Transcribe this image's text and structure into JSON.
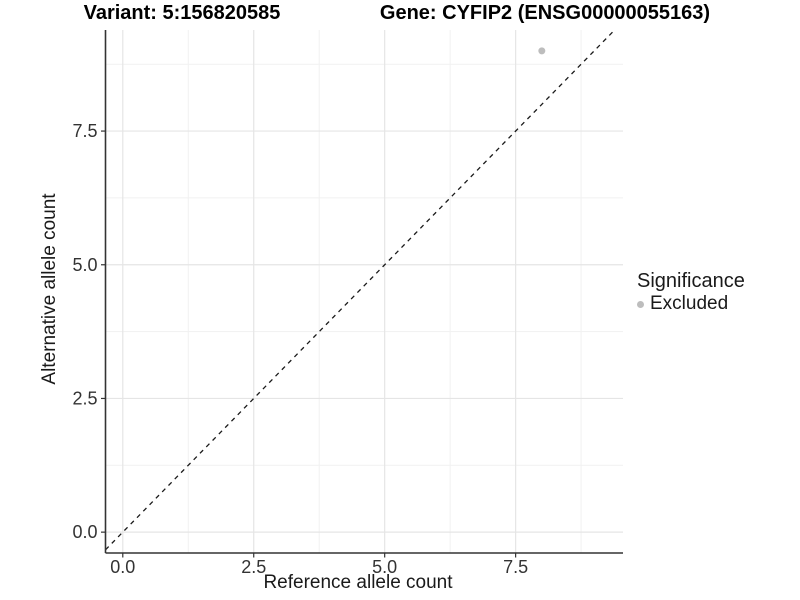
{
  "titles": {
    "variant": "Variant: 5:156820585",
    "gene": "Gene: CYFIP2 (ENSG00000055163)"
  },
  "chart_data": {
    "type": "scatter",
    "titles": {
      "variant": "Variant: 5:156820585",
      "gene": "Gene: CYFIP2 (ENSG00000055163)"
    },
    "xlabel": "Reference allele count",
    "ylabel": "Alternative allele count",
    "xlim": [
      -0.33,
      9.55
    ],
    "ylim": [
      -0.39,
      9.39
    ],
    "x_ticks": {
      "values": [
        0,
        2.5,
        5,
        7.5
      ],
      "labels": [
        "0.0",
        "2.5",
        "5.0",
        "7.5"
      ],
      "minor": [
        1.25,
        3.75,
        6.25,
        8.75
      ]
    },
    "y_ticks": {
      "values": [
        0,
        2.5,
        5,
        7.5
      ],
      "labels": [
        "0.0",
        "2.5",
        "5.0",
        "7.5"
      ],
      "minor": [
        1.25,
        3.75,
        6.25,
        8.75
      ]
    },
    "grid": "major+minor",
    "reference_line": {
      "kind": "identity",
      "slope": 1,
      "intercept": 0,
      "linetype": "dashed",
      "color": "#1a1a1a"
    },
    "series": [
      {
        "name": "Excluded",
        "color": "#bdbdbd",
        "points": [
          [
            8,
            9
          ]
        ]
      }
    ],
    "legend": {
      "title": "Significance",
      "position": "right",
      "items": [
        {
          "label": "Excluded",
          "color": "#bdbdbd",
          "marker": "point"
        }
      ]
    },
    "style": {
      "background": "#ffffff",
      "grid_major": "#e5e5e5",
      "grid_minor": "#f1f1f1",
      "axis_line": "#333333",
      "tick_mark": "#333333",
      "tick_text": "#333333",
      "point_radius": 3.5
    }
  }
}
